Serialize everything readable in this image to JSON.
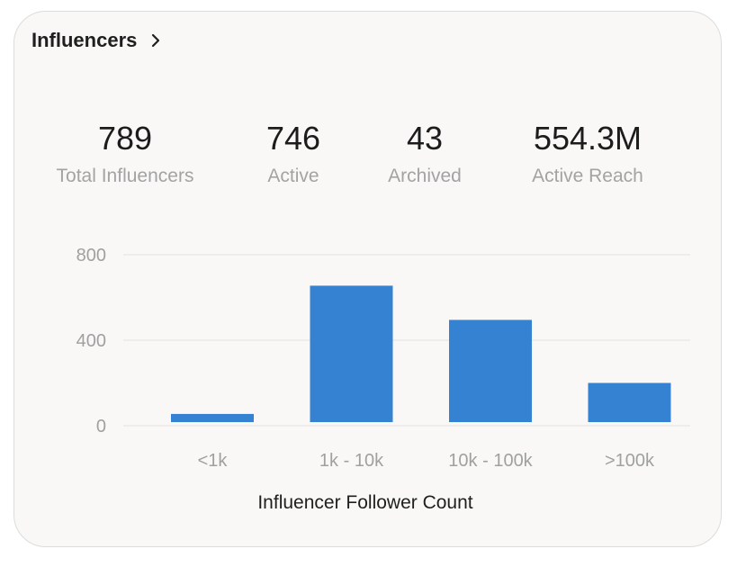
{
  "header": {
    "title": "Influencers"
  },
  "stats": [
    {
      "value": "789",
      "label": "Total Influencers"
    },
    {
      "value": "746",
      "label": "Active"
    },
    {
      "value": "43",
      "label": "Archived"
    },
    {
      "value": "554.3M",
      "label": "Active Reach"
    }
  ],
  "colors": {
    "bar": "#3582d2",
    "grid": "#e2e2e2"
  },
  "chart_data": {
    "type": "bar",
    "title": "",
    "categories": [
      "<1k",
      "1k - 10k",
      "10k - 100k",
      ">100k"
    ],
    "values": [
      55,
      655,
      495,
      200
    ],
    "xlabel": "Influencer Follower  Count",
    "ylabel": "",
    "ylim": [
      0,
      800
    ],
    "yticks": [
      0,
      400,
      800
    ],
    "ytick_labels": [
      "0",
      "400",
      "800"
    ],
    "grid": true,
    "legend": "none"
  }
}
